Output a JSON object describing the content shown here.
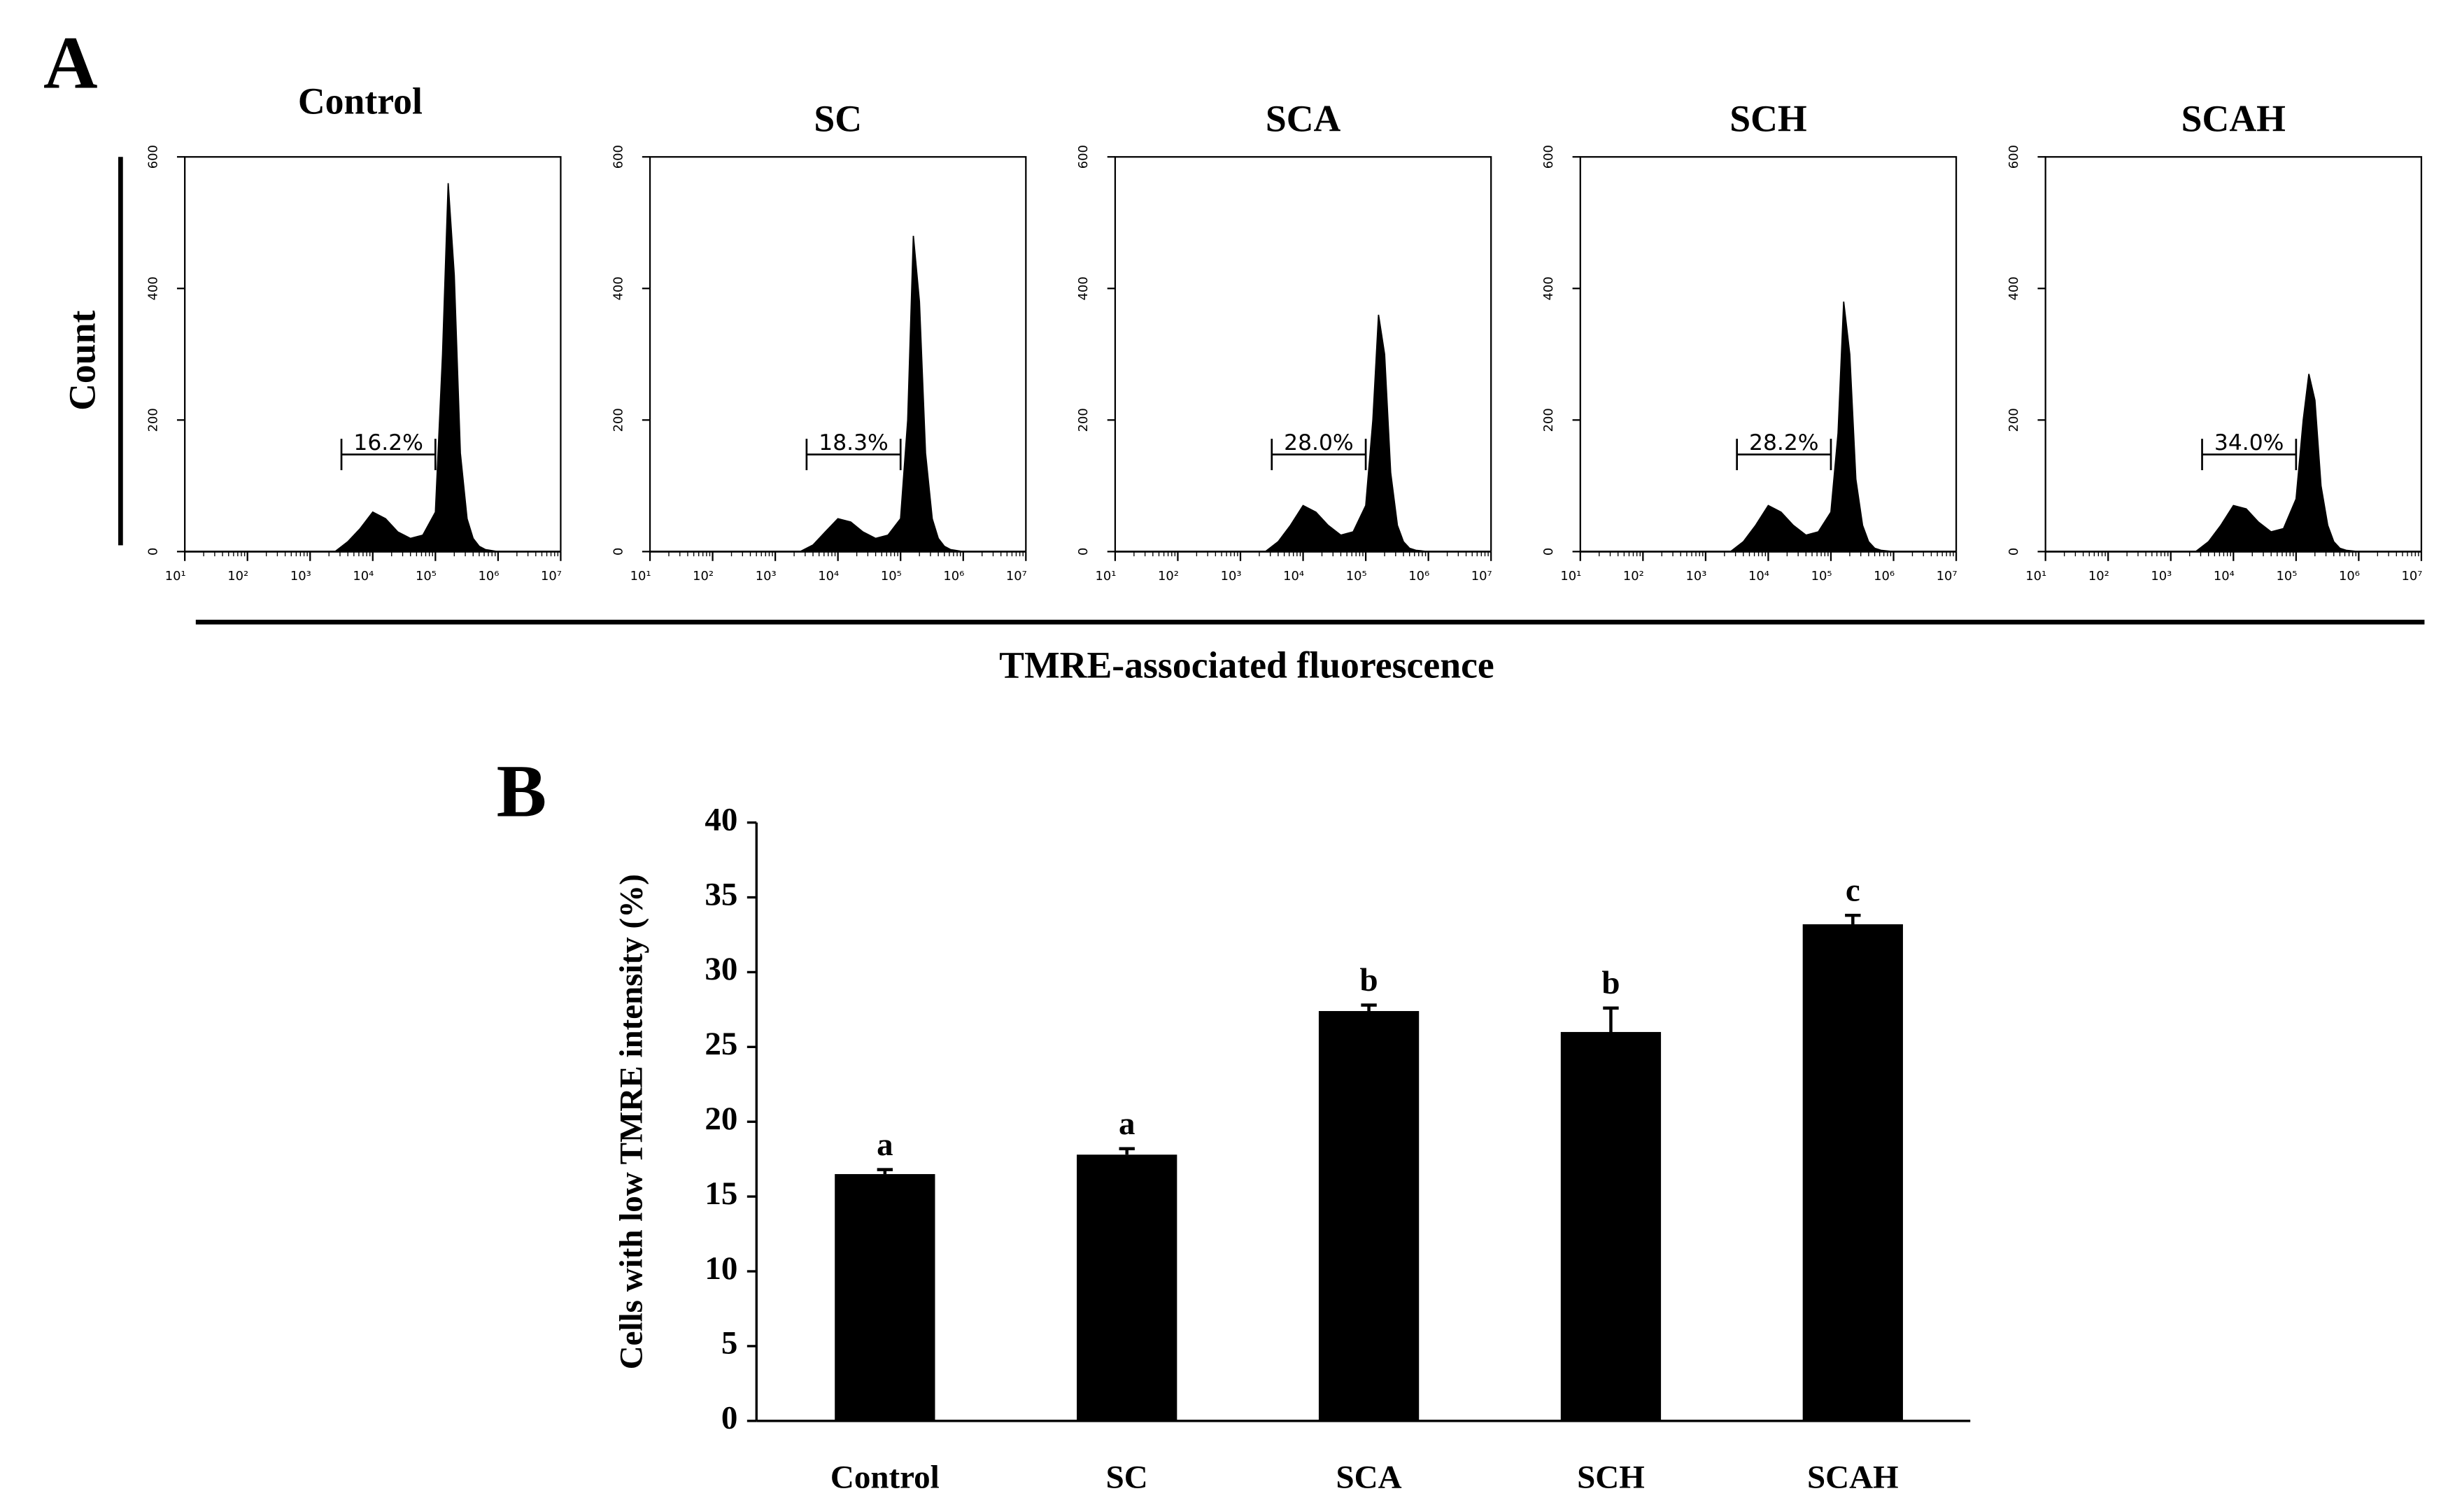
{
  "panel_labels": [
    "A",
    "B"
  ],
  "shared": {
    "ylabel": "Count",
    "xlabel": "TMRE-associated fluorescence"
  },
  "chart_data": [
    {
      "type": "area",
      "title": "Control",
      "log_x": true,
      "color": "#000000",
      "x": [
        2500,
        4000,
        6300,
        10000,
        16000,
        25000,
        40000,
        63000,
        100000,
        130000,
        160000,
        200000,
        250000,
        320000,
        400000,
        500000,
        630000,
        1000000
      ],
      "values": [
        0,
        15,
        35,
        60,
        50,
        30,
        20,
        25,
        60,
        300,
        560,
        420,
        150,
        50,
        20,
        8,
        3,
        0
      ],
      "xlim": [
        10,
        10000000
      ],
      "xticks": [
        {
          "value": 10,
          "label": "10¹"
        },
        {
          "value": 100,
          "label": "10²"
        },
        {
          "value": 1000,
          "label": "10³"
        },
        {
          "value": 10000,
          "label": "10⁴"
        },
        {
          "value": 100000,
          "label": "10⁵"
        },
        {
          "value": 1000000,
          "label": "10⁶"
        },
        {
          "value": 10000000,
          "label": "10⁷"
        }
      ],
      "ylim": [
        0,
        600
      ],
      "yticks": [
        0,
        200,
        400,
        600
      ],
      "gate_range": [
        3162,
        100000
      ],
      "gate_label": "16.2%"
    },
    {
      "type": "area",
      "title": "SC",
      "log_x": true,
      "color": "#000000",
      "x": [
        2500,
        4000,
        6300,
        10000,
        16000,
        25000,
        40000,
        63000,
        100000,
        130000,
        160000,
        200000,
        250000,
        320000,
        400000,
        500000,
        630000,
        1000000
      ],
      "values": [
        0,
        10,
        30,
        50,
        45,
        30,
        20,
        25,
        50,
        200,
        480,
        380,
        150,
        50,
        20,
        8,
        3,
        0
      ],
      "xlim": [
        10,
        10000000
      ],
      "xticks": [
        {
          "value": 10,
          "label": "10¹"
        },
        {
          "value": 100,
          "label": "10²"
        },
        {
          "value": 1000,
          "label": "10³"
        },
        {
          "value": 10000,
          "label": "10⁴"
        },
        {
          "value": 100000,
          "label": "10⁵"
        },
        {
          "value": 1000000,
          "label": "10⁶"
        },
        {
          "value": 10000000,
          "label": "10⁷"
        }
      ],
      "ylim": [
        0,
        600
      ],
      "yticks": [
        0,
        200,
        400,
        600
      ],
      "gate_range": [
        3162,
        100000
      ],
      "gate_label": "18.3%"
    },
    {
      "type": "area",
      "title": "SCA",
      "log_x": true,
      "color": "#000000",
      "x": [
        2500,
        4000,
        6300,
        10000,
        16000,
        25000,
        40000,
        63000,
        100000,
        130000,
        160000,
        200000,
        250000,
        320000,
        400000,
        500000,
        630000,
        1000000
      ],
      "values": [
        0,
        15,
        40,
        70,
        60,
        40,
        25,
        30,
        70,
        200,
        360,
        300,
        120,
        40,
        15,
        5,
        2,
        0
      ],
      "xlim": [
        10,
        10000000
      ],
      "xticks": [
        {
          "value": 10,
          "label": "10¹"
        },
        {
          "value": 100,
          "label": "10²"
        },
        {
          "value": 1000,
          "label": "10³"
        },
        {
          "value": 10000,
          "label": "10⁴"
        },
        {
          "value": 100000,
          "label": "10⁵"
        },
        {
          "value": 1000000,
          "label": "10⁶"
        },
        {
          "value": 10000000,
          "label": "10⁷"
        }
      ],
      "ylim": [
        0,
        600
      ],
      "yticks": [
        0,
        200,
        400,
        600
      ],
      "gate_range": [
        3162,
        100000
      ],
      "gate_label": "28.0%"
    },
    {
      "type": "area",
      "title": "SCH",
      "log_x": true,
      "color": "#000000",
      "x": [
        2500,
        4000,
        6300,
        10000,
        16000,
        25000,
        40000,
        63000,
        100000,
        130000,
        160000,
        200000,
        250000,
        320000,
        400000,
        500000,
        630000,
        1000000
      ],
      "values": [
        0,
        15,
        40,
        70,
        60,
        40,
        25,
        30,
        60,
        180,
        380,
        300,
        110,
        40,
        15,
        5,
        2,
        0
      ],
      "xlim": [
        10,
        10000000
      ],
      "xticks": [
        {
          "value": 10,
          "label": "10¹"
        },
        {
          "value": 100,
          "label": "10²"
        },
        {
          "value": 1000,
          "label": "10³"
        },
        {
          "value": 10000,
          "label": "10⁴"
        },
        {
          "value": 100000,
          "label": "10⁵"
        },
        {
          "value": 1000000,
          "label": "10⁶"
        },
        {
          "value": 10000000,
          "label": "10⁷"
        }
      ],
      "ylim": [
        0,
        600
      ],
      "yticks": [
        0,
        200,
        400,
        600
      ],
      "gate_range": [
        3162,
        100000
      ],
      "gate_label": "28.2%"
    },
    {
      "type": "area",
      "title": "SCAH",
      "log_x": true,
      "color": "#000000",
      "x": [
        2500,
        4000,
        6300,
        10000,
        16000,
        25000,
        40000,
        63000,
        100000,
        130000,
        160000,
        200000,
        250000,
        320000,
        400000,
        500000,
        630000,
        1000000
      ],
      "values": [
        0,
        15,
        40,
        70,
        65,
        45,
        30,
        35,
        80,
        200,
        270,
        230,
        100,
        40,
        15,
        5,
        2,
        0
      ],
      "xlim": [
        10,
        10000000
      ],
      "xticks": [
        {
          "value": 10,
          "label": "10¹"
        },
        {
          "value": 100,
          "label": "10²"
        },
        {
          "value": 1000,
          "label": "10³"
        },
        {
          "value": 10000,
          "label": "10⁴"
        },
        {
          "value": 100000,
          "label": "10⁵"
        },
        {
          "value": 1000000,
          "label": "10⁶"
        },
        {
          "value": 10000000,
          "label": "10⁷"
        }
      ],
      "ylim": [
        0,
        600
      ],
      "yticks": [
        0,
        200,
        400,
        600
      ],
      "gate_range": [
        3162,
        100000
      ],
      "gate_label": "34.0%"
    },
    {
      "type": "bar",
      "ylabel": "Cells with low TMRE intensity (%)",
      "color": "#000000",
      "categories": [
        "Control",
        "SC",
        "SCA",
        "SCH",
        "SCAH"
      ],
      "values": [
        16.5,
        17.8,
        27.4,
        26,
        33.2
      ],
      "errors": [
        0.3,
        0.4,
        0.4,
        1.6,
        0.6
      ],
      "annotations": [
        "a",
        "a",
        "b",
        "b",
        "c"
      ],
      "ylim": [
        0,
        40
      ],
      "yticks": [
        0,
        5,
        10,
        15,
        20,
        25,
        30,
        35,
        40
      ]
    }
  ]
}
